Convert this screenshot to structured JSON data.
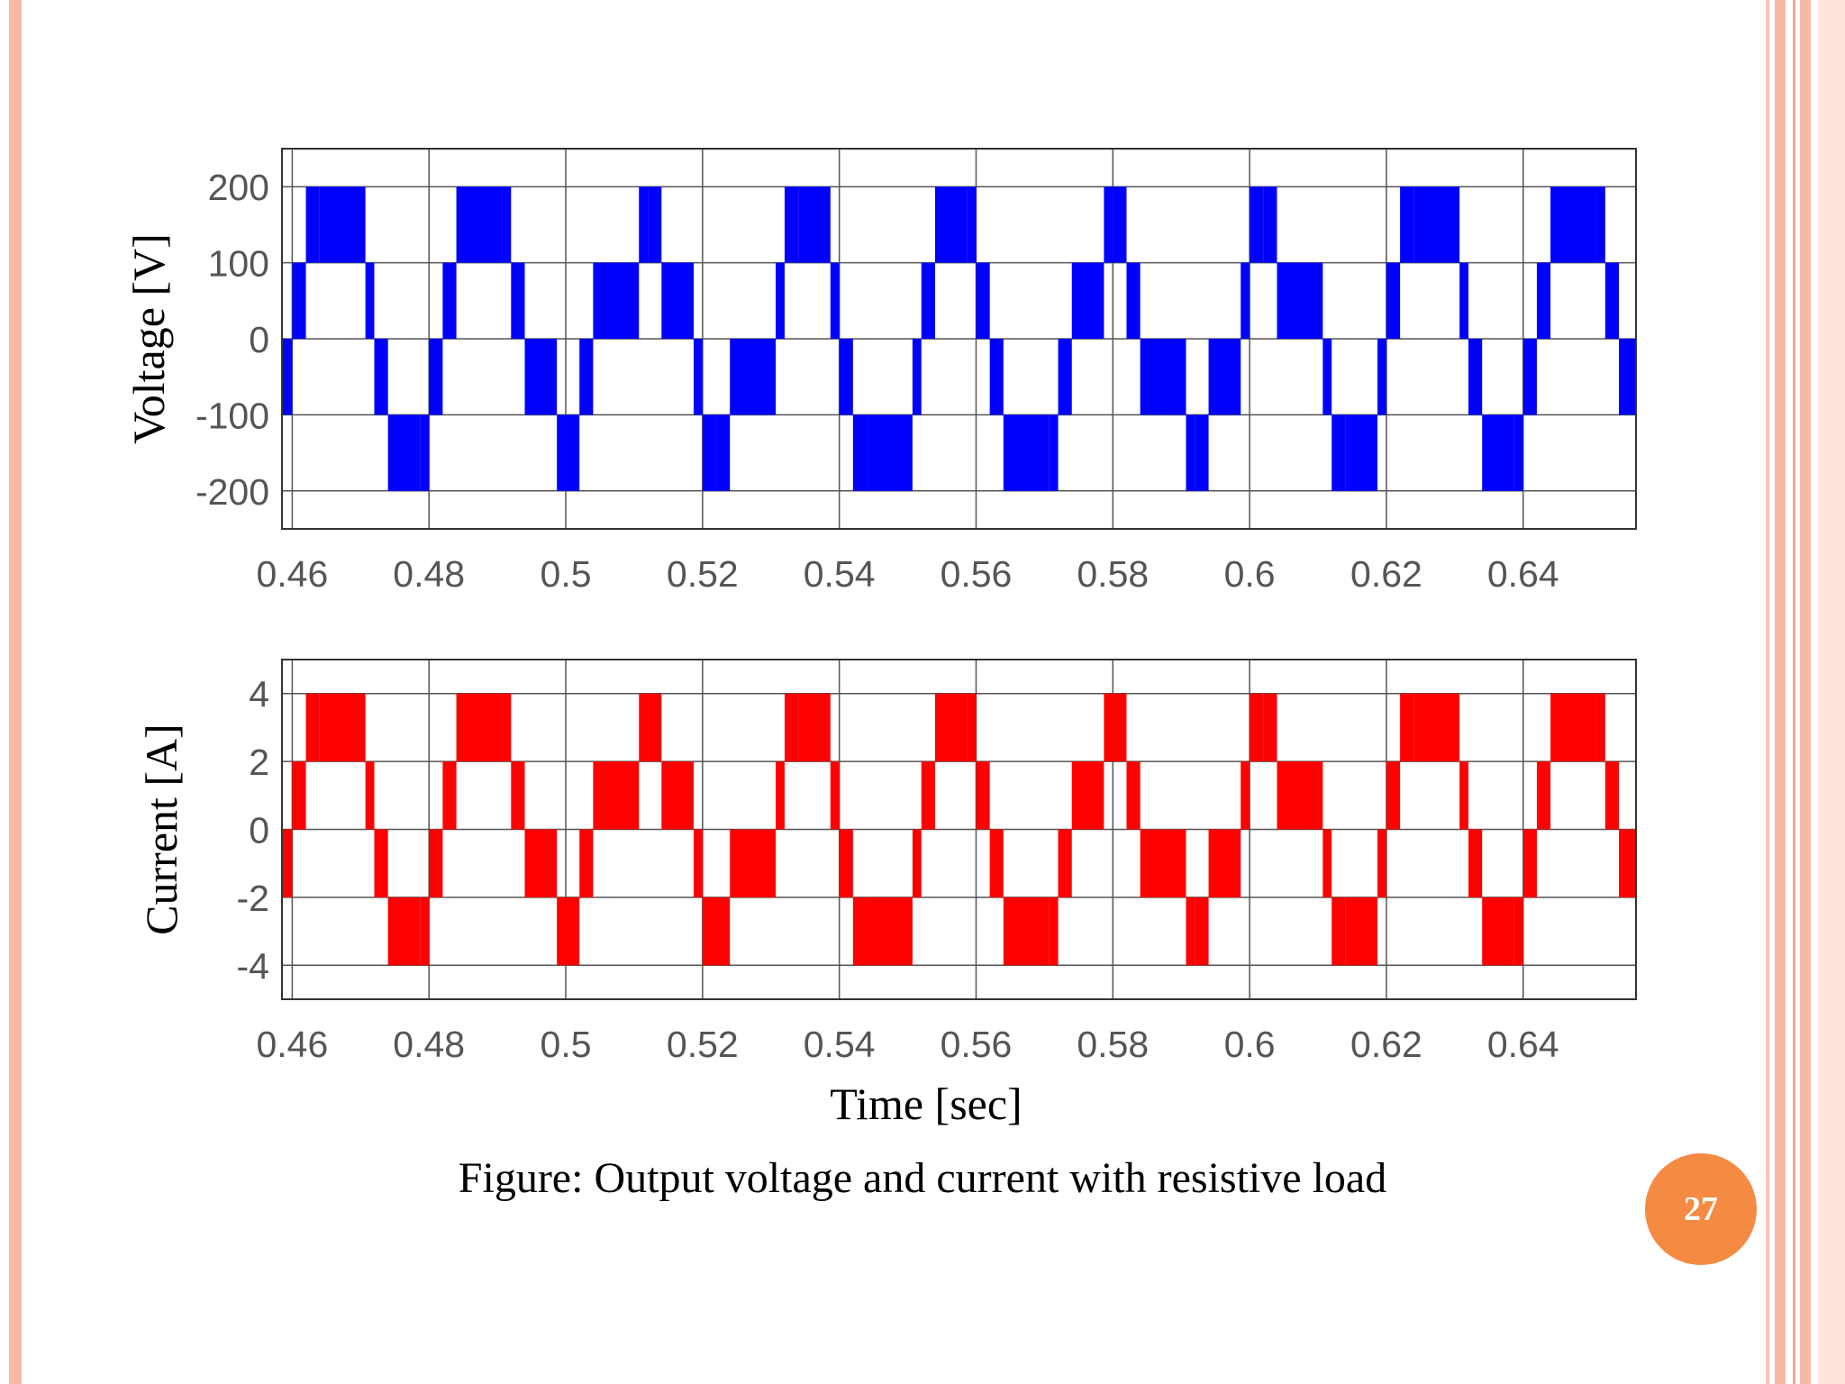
{
  "chart_data": [
    {
      "type": "line",
      "ylabel": "Voltage [V]",
      "xlim": [
        0.4585,
        0.6565
      ],
      "ylim": [
        -250,
        250
      ],
      "yticks": [
        200,
        100,
        0,
        -100,
        -200
      ],
      "xticks": [
        0.46,
        0.48,
        0.5,
        0.52,
        0.54,
        0.56,
        0.58,
        0.6,
        0.62,
        0.64
      ],
      "grid": true,
      "color": "#0000ff",
      "series": [
        {
          "x": [
            0.4585,
            0.46,
            0.462,
            0.464,
            0.4707,
            0.472,
            0.474,
            0.4787,
            0.48,
            0.482,
            0.484,
            0.4907,
            0.492,
            0.494,
            0.4987,
            0.5,
            0.502,
            0.504,
            0.5107,
            0.512,
            0.514,
            0.5187,
            0.52,
            0.522,
            0.524,
            0.5307,
            0.532,
            0.534,
            0.5387,
            0.54,
            0.542,
            0.544,
            0.5507,
            0.552,
            0.554,
            0.5587,
            0.56,
            0.562,
            0.564,
            0.5707,
            0.572,
            0.574,
            0.5787,
            0.58,
            0.582,
            0.584,
            0.5907,
            0.592,
            0.594,
            0.5987,
            0.6,
            0.602,
            0.604,
            0.6107,
            0.612,
            0.614,
            0.6187,
            0.62,
            0.622,
            0.624,
            0.6307,
            0.632,
            0.634,
            0.6387,
            0.64,
            0.642,
            0.644,
            0.6507,
            0.652,
            0.654,
            0.6565
          ],
          "y": [
            -100,
            0,
            100,
            200,
            100,
            0,
            -100,
            -200,
            -100,
            0,
            100,
            200,
            100,
            0,
            -100,
            -200,
            -100,
            0,
            100,
            200,
            100,
            0,
            -100,
            -200,
            -100,
            0,
            100,
            200,
            100,
            0,
            -100,
            -200,
            -100,
            0,
            100,
            200,
            100,
            0,
            -100,
            -200,
            -100,
            0,
            100,
            200,
            100,
            0,
            -100,
            -200,
            -100,
            0,
            100,
            200,
            100,
            0,
            -100,
            -200,
            -100,
            0,
            100,
            200,
            100,
            0,
            -100,
            -200,
            -100,
            0,
            100,
            200,
            100,
            0,
            -100
          ]
        }
      ]
    },
    {
      "type": "line",
      "ylabel": "Current [A]",
      "xlabel": "Time [sec]",
      "xlim": [
        0.4585,
        0.6565
      ],
      "ylim": [
        -5,
        5
      ],
      "yticks": [
        4,
        2,
        0,
        -2,
        -4
      ],
      "xticks": [
        0.46,
        0.48,
        0.5,
        0.52,
        0.54,
        0.56,
        0.58,
        0.6,
        0.62,
        0.64
      ],
      "grid": true,
      "color": "#ff0000",
      "series": [
        {
          "x": [
            0.4585,
            0.46,
            0.462,
            0.464,
            0.4707,
            0.472,
            0.474,
            0.4787,
            0.48,
            0.482,
            0.484,
            0.4907,
            0.492,
            0.494,
            0.4987,
            0.5,
            0.502,
            0.504,
            0.5107,
            0.512,
            0.514,
            0.5187,
            0.52,
            0.522,
            0.524,
            0.5307,
            0.532,
            0.534,
            0.5387,
            0.54,
            0.542,
            0.544,
            0.5507,
            0.552,
            0.554,
            0.5587,
            0.56,
            0.562,
            0.564,
            0.5707,
            0.572,
            0.574,
            0.5787,
            0.58,
            0.582,
            0.584,
            0.5907,
            0.592,
            0.594,
            0.5987,
            0.6,
            0.602,
            0.604,
            0.6107,
            0.612,
            0.614,
            0.6187,
            0.62,
            0.622,
            0.624,
            0.6307,
            0.632,
            0.634,
            0.6387,
            0.64,
            0.642,
            0.644,
            0.6507,
            0.652,
            0.654,
            0.6565
          ],
          "y": [
            -2,
            0,
            2,
            4,
            2,
            0,
            -2,
            -4,
            -2,
            0,
            2,
            4,
            2,
            0,
            -2,
            -4,
            -2,
            0,
            2,
            4,
            2,
            0,
            -2,
            -4,
            -2,
            0,
            2,
            4,
            2,
            0,
            -2,
            -4,
            -2,
            0,
            2,
            4,
            2,
            0,
            -2,
            -4,
            -2,
            0,
            2,
            4,
            2,
            0,
            -2,
            -4,
            -2,
            0,
            2,
            4,
            2,
            0,
            -2,
            -4,
            -2,
            0,
            2,
            4,
            2,
            0,
            -2,
            -4,
            -2,
            0,
            2,
            4,
            2,
            0,
            -2
          ]
        }
      ]
    }
  ],
  "caption": "Figure: Output voltage and current with resistive load",
  "page_number": "27",
  "colors": {
    "accent": "#f58a42",
    "border": "#f7b9a6"
  }
}
